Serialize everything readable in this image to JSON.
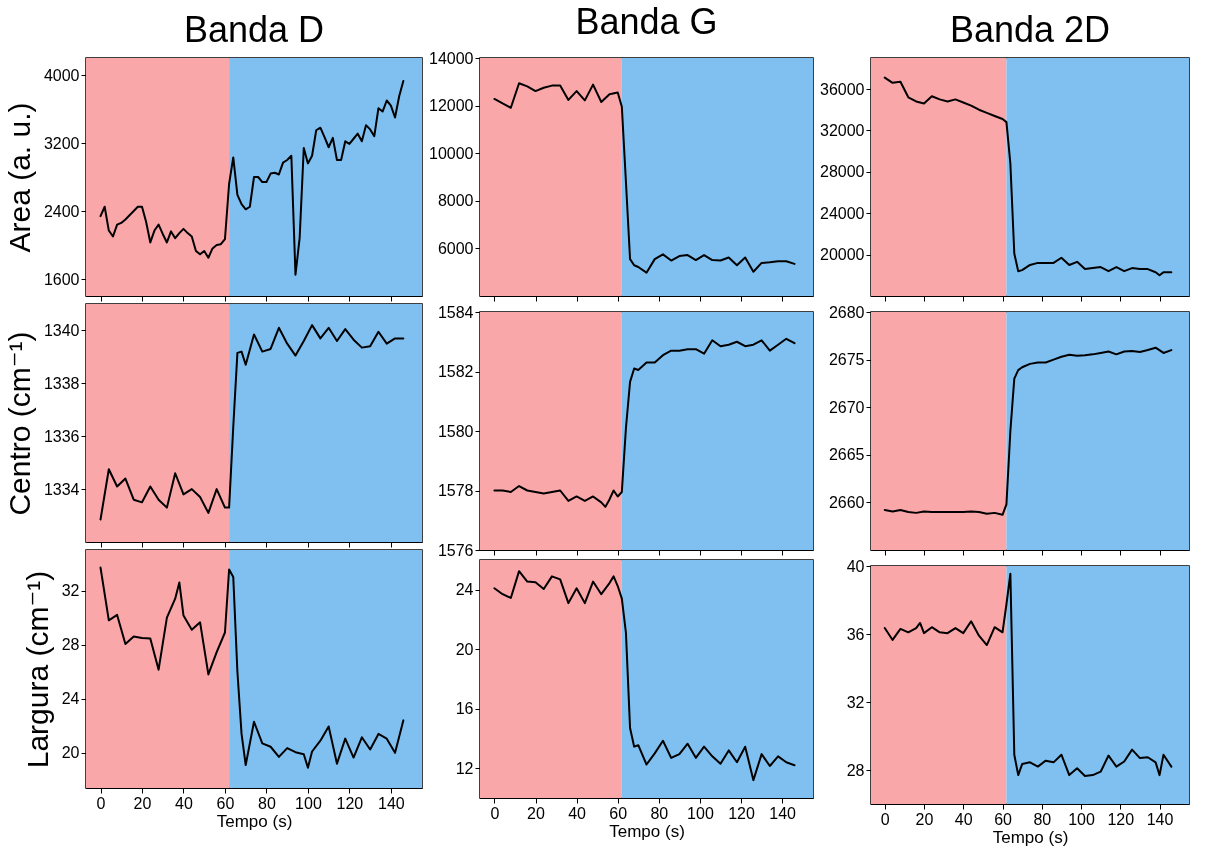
{
  "chart_data": [
    {
      "type": "line",
      "title": "Banda D",
      "ylabel": "Area (a. u.)",
      "tick_labels": "y",
      "xlim": [
        -7,
        155
      ],
      "xticks": [
        0,
        20,
        40,
        60,
        80,
        100,
        120,
        140
      ],
      "ylim": [
        1400,
        4200
      ],
      "yticks": [
        1600,
        2400,
        3200,
        4000
      ],
      "x": [
        0,
        2,
        4,
        6,
        8,
        10,
        12,
        14,
        16,
        18,
        20,
        22,
        24,
        26,
        28,
        30,
        32,
        34,
        36,
        38,
        40,
        42,
        44,
        46,
        48,
        50,
        52,
        54,
        56,
        58,
        60,
        62,
        64,
        66,
        68,
        70,
        72,
        74,
        76,
        78,
        80,
        82,
        84,
        86,
        88,
        90,
        92,
        94,
        96,
        98,
        100,
        102,
        104,
        106,
        108,
        110,
        112,
        114,
        116,
        118,
        120,
        122,
        124,
        126,
        128,
        130,
        132,
        134,
        136,
        138,
        140,
        142,
        144,
        146
      ],
      "series": [
        {
          "color": "#000000",
          "values": [
            2340,
            2450,
            2170,
            2100,
            2240,
            2260,
            2300,
            2350,
            2400,
            2450,
            2450,
            2270,
            2030,
            2170,
            2240,
            2130,
            2030,
            2160,
            2080,
            2140,
            2190,
            2140,
            2100,
            1930,
            1890,
            1930,
            1850,
            1960,
            2000,
            2010,
            2070,
            2720,
            3030,
            2590,
            2480,
            2420,
            2450,
            2800,
            2800,
            2740,
            2740,
            2840,
            2850,
            2830,
            2970,
            3000,
            3050,
            1650,
            2080,
            3140,
            2960,
            3050,
            3350,
            3380,
            3270,
            3150,
            3260,
            3000,
            3000,
            3220,
            3190,
            3250,
            3310,
            3220,
            3410,
            3360,
            3280,
            3610,
            3570,
            3700,
            3640,
            3500,
            3750,
            3930
          ]
        }
      ],
      "bands": [
        {
          "axis": "x",
          "from": -7,
          "to": 62,
          "color": "#f9a7a9"
        },
        {
          "axis": "x",
          "from": 62,
          "to": 155,
          "color": "#80c0f0"
        }
      ]
    },
    {
      "type": "line",
      "title": "Banda G",
      "tick_labels": "y",
      "xlim": [
        -7,
        155
      ],
      "xticks": [
        0,
        20,
        40,
        60,
        80,
        100,
        120,
        140
      ],
      "ylim": [
        4000,
        14000
      ],
      "yticks": [
        6000,
        8000,
        10000,
        12000,
        14000
      ],
      "x": [
        0,
        4,
        8,
        12,
        16,
        20,
        24,
        28,
        32,
        36,
        40,
        44,
        48,
        52,
        56,
        60,
        62,
        64,
        66,
        68,
        70,
        74,
        78,
        82,
        86,
        90,
        94,
        98,
        102,
        106,
        110,
        114,
        118,
        122,
        126,
        130,
        134,
        138,
        142,
        146
      ],
      "series": [
        {
          "color": "#000000",
          "values": [
            12280,
            12090,
            11910,
            12940,
            12810,
            12610,
            12750,
            12840,
            12840,
            12240,
            12610,
            12220,
            12880,
            12150,
            12480,
            12550,
            11950,
            8790,
            5550,
            5290,
            5220,
            4980,
            5550,
            5750,
            5490,
            5680,
            5720,
            5510,
            5720,
            5510,
            5490,
            5620,
            5290,
            5620,
            5020,
            5390,
            5420,
            5460,
            5460,
            5350
          ]
        }
      ],
      "bands": [
        {
          "axis": "x",
          "from": -7,
          "to": 62,
          "color": "#f9a7a9"
        },
        {
          "axis": "x",
          "from": 62,
          "to": 155,
          "color": "#80c0f0"
        }
      ]
    },
    {
      "type": "line",
      "title": "Banda 2D",
      "tick_labels": "y",
      "xlim": [
        -7,
        155
      ],
      "xticks": [
        0,
        20,
        40,
        60,
        80,
        100,
        120,
        140
      ],
      "ylim": [
        16000,
        39000
      ],
      "yticks": [
        20000,
        24000,
        28000,
        32000,
        36000
      ],
      "x": [
        0,
        4,
        8,
        12,
        16,
        20,
        24,
        28,
        32,
        36,
        40,
        44,
        48,
        52,
        56,
        60,
        62,
        64,
        66,
        68,
        70,
        74,
        78,
        82,
        86,
        90,
        94,
        98,
        102,
        106,
        110,
        114,
        118,
        122,
        126,
        130,
        134,
        138,
        140,
        142,
        146
      ],
      "series": [
        {
          "color": "#000000",
          "values": [
            37100,
            36600,
            36700,
            35200,
            34800,
            34600,
            35300,
            35000,
            34800,
            35000,
            34700,
            34400,
            34000,
            33700,
            33400,
            33100,
            32800,
            28800,
            20100,
            18400,
            18500,
            19000,
            19200,
            19200,
            19200,
            19700,
            19000,
            19300,
            18600,
            18700,
            18800,
            18400,
            18800,
            18400,
            18700,
            18600,
            18600,
            18300,
            18000,
            18300,
            18300
          ]
        }
      ],
      "bands": [
        {
          "axis": "x",
          "from": -7,
          "to": 62,
          "color": "#f9a7a9"
        },
        {
          "axis": "x",
          "from": 62,
          "to": 155,
          "color": "#80c0f0"
        }
      ]
    },
    {
      "type": "line",
      "ylabel": "Centro (cm⁻¹)",
      "tick_labels": "y",
      "xlim": [
        -7,
        155
      ],
      "xticks": [
        0,
        20,
        40,
        60,
        80,
        100,
        120,
        140
      ],
      "ylim": [
        1332,
        1341
      ],
      "yticks": [
        1334,
        1336,
        1338,
        1340
      ],
      "x": [
        0,
        4,
        8,
        12,
        16,
        20,
        24,
        28,
        32,
        36,
        40,
        44,
        48,
        52,
        56,
        60,
        62,
        64,
        66,
        68,
        70,
        74,
        78,
        82,
        86,
        90,
        94,
        98,
        102,
        106,
        110,
        114,
        118,
        122,
        126,
        130,
        134,
        138,
        142,
        146
      ],
      "series": [
        {
          "color": "#000000",
          "values": [
            1332.85,
            1334.75,
            1334.1,
            1334.4,
            1333.6,
            1333.5,
            1334.1,
            1333.6,
            1333.3,
            1334.6,
            1333.8,
            1334.0,
            1333.7,
            1333.1,
            1334.0,
            1333.3,
            1333.3,
            1336.35,
            1339.15,
            1339.2,
            1338.7,
            1339.85,
            1339.2,
            1339.3,
            1340.1,
            1339.5,
            1339.05,
            1339.6,
            1340.2,
            1339.7,
            1340.1,
            1339.6,
            1340.05,
            1339.65,
            1339.35,
            1339.4,
            1339.95,
            1339.5,
            1339.7,
            1339.7
          ]
        }
      ],
      "bands": [
        {
          "axis": "x",
          "from": -7,
          "to": 62,
          "color": "#f9a7a9"
        },
        {
          "axis": "x",
          "from": 62,
          "to": 155,
          "color": "#80c0f0"
        }
      ]
    },
    {
      "type": "line",
      "tick_labels": "y",
      "xlim": [
        -7,
        155
      ],
      "xticks": [
        0,
        20,
        40,
        60,
        80,
        100,
        120,
        140
      ],
      "ylim": [
        1576,
        1584
      ],
      "yticks": [
        1576,
        1578,
        1580,
        1582,
        1584
      ],
      "x": [
        0,
        4,
        8,
        12,
        16,
        20,
        24,
        28,
        32,
        36,
        40,
        44,
        48,
        52,
        54,
        56,
        58,
        60,
        62,
        64,
        66,
        68,
        70,
        74,
        78,
        82,
        86,
        90,
        94,
        98,
        102,
        106,
        110,
        114,
        118,
        122,
        126,
        130,
        134,
        138,
        142,
        146
      ],
      "series": [
        {
          "color": "#000000",
          "values": [
            1578.0,
            1578.0,
            1577.95,
            1578.15,
            1578.0,
            1577.95,
            1577.9,
            1577.95,
            1578.0,
            1577.65,
            1577.8,
            1577.65,
            1577.8,
            1577.6,
            1577.45,
            1577.7,
            1578.0,
            1577.8,
            1577.95,
            1580.1,
            1581.65,
            1582.1,
            1582.05,
            1582.3,
            1582.3,
            1582.55,
            1582.7,
            1582.7,
            1582.75,
            1582.75,
            1582.6,
            1583.05,
            1582.85,
            1582.9,
            1583.0,
            1582.85,
            1582.9,
            1583.05,
            1582.7,
            1582.9,
            1583.1,
            1582.95
          ]
        }
      ],
      "bands": [
        {
          "axis": "x",
          "from": -7,
          "to": 62,
          "color": "#f9a7a9"
        },
        {
          "axis": "x",
          "from": 62,
          "to": 155,
          "color": "#80c0f0"
        }
      ]
    },
    {
      "type": "line",
      "tick_labels": "y",
      "xlim": [
        -7,
        155
      ],
      "xticks": [
        0,
        20,
        40,
        60,
        80,
        100,
        120,
        140
      ],
      "ylim": [
        2655,
        2680
      ],
      "yticks": [
        2660,
        2665,
        2670,
        2675,
        2680
      ],
      "x": [
        0,
        4,
        8,
        12,
        16,
        20,
        24,
        28,
        32,
        36,
        40,
        44,
        48,
        52,
        56,
        60,
        62,
        64,
        66,
        68,
        70,
        74,
        78,
        82,
        86,
        90,
        94,
        98,
        102,
        106,
        110,
        114,
        118,
        122,
        126,
        130,
        134,
        138,
        142,
        146
      ],
      "series": [
        {
          "color": "#000000",
          "values": [
            2659.2,
            2659.05,
            2659.2,
            2659.0,
            2658.9,
            2659.05,
            2659.0,
            2659.0,
            2659.0,
            2659.0,
            2659.0,
            2659.05,
            2659.0,
            2658.8,
            2658.9,
            2658.7,
            2659.8,
            2667.5,
            2673.0,
            2673.9,
            2674.2,
            2674.55,
            2674.7,
            2674.7,
            2675.0,
            2675.3,
            2675.5,
            2675.4,
            2675.45,
            2675.55,
            2675.7,
            2675.85,
            2675.55,
            2675.85,
            2675.9,
            2675.8,
            2676.0,
            2676.25,
            2675.7,
            2676.0
          ]
        }
      ],
      "bands": [
        {
          "axis": "x",
          "from": -7,
          "to": 62,
          "color": "#f9a7a9"
        },
        {
          "axis": "x",
          "from": 62,
          "to": 155,
          "color": "#80c0f0"
        }
      ]
    },
    {
      "type": "line",
      "ylabel": "Largura (cm⁻¹)",
      "xlabel": "Tempo (s)",
      "xlim": [
        -7,
        155
      ],
      "xticks": [
        0,
        20,
        40,
        60,
        80,
        100,
        120,
        140
      ],
      "ylim": [
        17.4,
        35
      ],
      "yticks": [
        20,
        24,
        28,
        32
      ],
      "x": [
        0,
        4,
        8,
        12,
        16,
        20,
        24,
        28,
        32,
        36,
        38,
        40,
        44,
        48,
        52,
        56,
        60,
        62,
        64,
        66,
        68,
        70,
        74,
        78,
        82,
        86,
        90,
        94,
        98,
        100,
        102,
        106,
        110,
        114,
        118,
        122,
        126,
        130,
        134,
        138,
        142,
        146
      ],
      "series": [
        {
          "color": "#000000",
          "values": [
            33.7,
            29.8,
            30.2,
            28.05,
            28.6,
            28.5,
            28.45,
            26.15,
            30.0,
            31.4,
            32.6,
            30.15,
            29.1,
            29.65,
            25.8,
            27.45,
            28.9,
            33.55,
            33.0,
            26.0,
            21.4,
            19.1,
            22.3,
            20.7,
            20.45,
            19.7,
            20.35,
            20.05,
            19.9,
            18.9,
            20.1,
            20.9,
            21.95,
            19.2,
            21.05,
            19.65,
            21.15,
            20.25,
            21.4,
            21.05,
            20.0,
            22.4
          ]
        }
      ],
      "bands": [
        {
          "axis": "x",
          "from": -7,
          "to": 62,
          "color": "#f9a7a9"
        },
        {
          "axis": "x",
          "from": 62,
          "to": 155,
          "color": "#80c0f0"
        }
      ]
    },
    {
      "type": "line",
      "xlabel": "Tempo (s)",
      "xlim": [
        -7,
        155
      ],
      "xticks": [
        0,
        20,
        40,
        60,
        80,
        100,
        120,
        140
      ],
      "ylim": [
        10,
        26
      ],
      "yticks": [
        12,
        16,
        20,
        24
      ],
      "x": [
        0,
        4,
        8,
        12,
        16,
        20,
        24,
        28,
        32,
        36,
        40,
        44,
        48,
        52,
        56,
        58,
        60,
        62,
        64,
        66,
        68,
        70,
        74,
        78,
        82,
        86,
        90,
        94,
        98,
        102,
        106,
        110,
        114,
        118,
        122,
        126,
        130,
        134,
        138,
        142,
        146
      ],
      "series": [
        {
          "color": "#000000",
          "values": [
            24.1,
            23.7,
            23.45,
            25.25,
            24.55,
            24.5,
            24.05,
            24.9,
            24.7,
            23.1,
            24.1,
            23.1,
            24.55,
            23.7,
            24.45,
            24.9,
            24.25,
            23.4,
            21.1,
            14.7,
            13.45,
            13.55,
            12.25,
            13.0,
            13.85,
            12.7,
            12.95,
            13.65,
            12.7,
            13.45,
            12.8,
            12.3,
            13.2,
            12.4,
            13.45,
            11.2,
            12.95,
            12.15,
            12.8,
            12.4,
            12.2
          ]
        }
      ],
      "bands": [
        {
          "axis": "x",
          "from": -7,
          "to": 62,
          "color": "#f9a7a9"
        },
        {
          "axis": "x",
          "from": 62,
          "to": 155,
          "color": "#80c0f0"
        }
      ]
    },
    {
      "type": "line",
      "xlabel": "Tempo (s)",
      "xlim": [
        -7,
        155
      ],
      "xticks": [
        0,
        20,
        40,
        60,
        80,
        100,
        120,
        140
      ],
      "ylim": [
        26,
        40
      ],
      "yticks": [
        28,
        32,
        36,
        40
      ],
      "x": [
        0,
        4,
        8,
        12,
        16,
        18,
        20,
        24,
        28,
        32,
        36,
        40,
        44,
        48,
        52,
        56,
        60,
        62,
        64,
        66,
        68,
        70,
        74,
        78,
        82,
        86,
        90,
        94,
        98,
        102,
        106,
        110,
        114,
        118,
        122,
        126,
        130,
        134,
        138,
        140,
        142,
        146
      ],
      "series": [
        {
          "color": "#000000",
          "values": [
            36.35,
            35.65,
            36.3,
            36.1,
            36.35,
            36.65,
            36.05,
            36.4,
            36.1,
            36.05,
            36.35,
            36.05,
            36.75,
            35.9,
            35.35,
            36.4,
            36.1,
            37.75,
            39.55,
            28.9,
            27.7,
            28.35,
            28.45,
            28.2,
            28.55,
            28.45,
            28.9,
            27.7,
            28.1,
            27.65,
            27.7,
            27.9,
            28.85,
            28.2,
            28.5,
            29.2,
            28.7,
            28.75,
            28.45,
            27.7,
            28.9,
            28.2
          ]
        }
      ],
      "bands": [
        {
          "axis": "x",
          "from": -7,
          "to": 62,
          "color": "#f9a7a9"
        },
        {
          "axis": "x",
          "from": 62,
          "to": 155,
          "color": "#80c0f0"
        }
      ]
    }
  ]
}
